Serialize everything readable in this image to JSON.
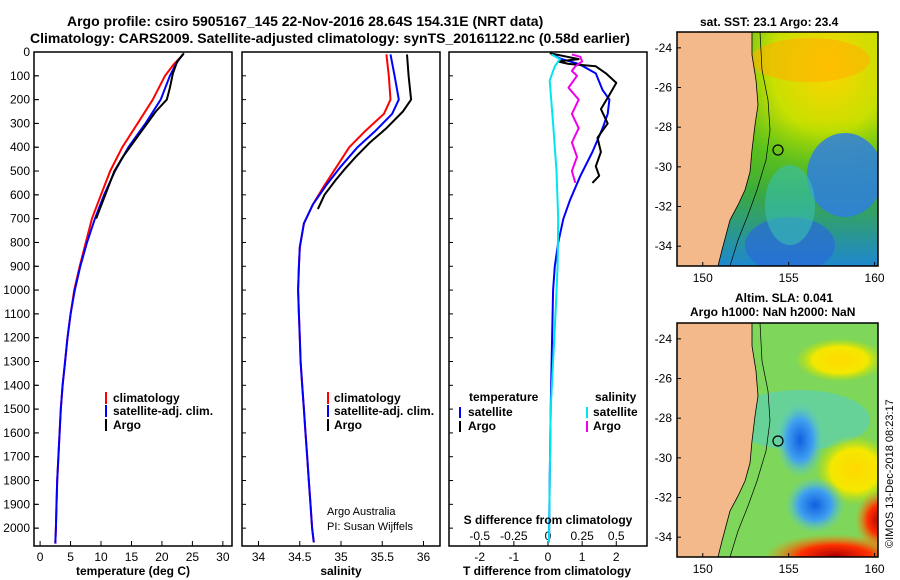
{
  "header": {
    "title_line1": "Argo profile: csiro 5905167_145 22-Nov-2016 28.64S 154.31E (NRT data)",
    "title_line2": "Climatology: CARS2009. Satellite-adjusted climatology: synTS_20161122.nc (0.58d earlier)"
  },
  "colors": {
    "climatology": "#ff0000",
    "satellite": "#0000ff",
    "argo": "#000000",
    "sat_salinity": "#00e5ee",
    "argo_salinity": "#ee00ee",
    "land": "#f4b98a"
  },
  "chart_data": [
    {
      "id": "temperature",
      "type": "line",
      "xlabel": "temperature (deg C)",
      "ylabel": "",
      "xlim": [
        -1,
        31.5
      ],
      "ylim": [
        2075,
        0
      ],
      "xticks": [
        0,
        5,
        10,
        15,
        20,
        25,
        30
      ],
      "yticks": [
        0,
        100,
        200,
        300,
        400,
        500,
        600,
        700,
        800,
        900,
        1000,
        1100,
        1200,
        1300,
        1400,
        1500,
        1600,
        1700,
        1800,
        1900,
        2000
      ],
      "legend": [
        "climatology",
        "satellite-adj. clim.",
        "Argo"
      ],
      "series": [
        {
          "name": "climatology",
          "color": "#ff0000",
          "points": [
            [
              23.5,
              10
            ],
            [
              22,
              50
            ],
            [
              20.5,
              100
            ],
            [
              18.5,
              200
            ],
            [
              16,
              300
            ],
            [
              13.5,
              400
            ],
            [
              11.5,
              500
            ],
            [
              10,
              600
            ],
            [
              8.5,
              700
            ],
            [
              7.5,
              800
            ],
            [
              6.5,
              900
            ],
            [
              5.6,
              1000
            ],
            [
              5,
              1100
            ],
            [
              4.5,
              1200
            ],
            [
              4.1,
              1300
            ],
            [
              3.7,
              1400
            ],
            [
              3.4,
              1500
            ],
            [
              3.2,
              1600
            ],
            [
              3,
              1700
            ],
            [
              2.8,
              1800
            ],
            [
              2.7,
              1900
            ],
            [
              2.6,
              2000
            ],
            [
              2.5,
              2065
            ]
          ]
        },
        {
          "name": "satellite-adj. clim.",
          "color": "#0000ff",
          "points": [
            [
              23.4,
              10
            ],
            [
              22.3,
              50
            ],
            [
              21.3,
              100
            ],
            [
              19.8,
              200
            ],
            [
              17.3,
              300
            ],
            [
              14.5,
              400
            ],
            [
              12.3,
              500
            ],
            [
              10.5,
              600
            ],
            [
              9,
              700
            ],
            [
              7.7,
              800
            ],
            [
              6.6,
              900
            ],
            [
              5.7,
              1000
            ],
            [
              5,
              1100
            ],
            [
              4.5,
              1200
            ],
            [
              4.1,
              1300
            ],
            [
              3.7,
              1400
            ],
            [
              3.4,
              1500
            ],
            [
              3.2,
              1600
            ],
            [
              3,
              1700
            ],
            [
              2.8,
              1800
            ],
            [
              2.7,
              1900
            ],
            [
              2.6,
              2000
            ],
            [
              2.5,
              2065
            ]
          ]
        },
        {
          "name": "Argo",
          "color": "#000000",
          "points": [
            [
              23.6,
              5
            ],
            [
              22.5,
              40
            ],
            [
              21.8,
              90
            ],
            [
              21.3,
              150
            ],
            [
              20.8,
              200
            ],
            [
              19,
              250
            ],
            [
              17,
              320
            ],
            [
              15.3,
              380
            ],
            [
              13.6,
              440
            ],
            [
              12.2,
              500
            ],
            [
              10.7,
              600
            ],
            [
              9.2,
              700
            ]
          ]
        }
      ]
    },
    {
      "id": "salinity",
      "type": "line",
      "xlabel": "salinity",
      "ylabel": "",
      "xlim": [
        33.8,
        36.2
      ],
      "ylim": [
        2075,
        0
      ],
      "xticks": [
        34,
        34.5,
        35,
        35.5,
        36
      ],
      "legend": [
        "climatology",
        "satellite-adj. clim.",
        "Argo"
      ],
      "series": [
        {
          "name": "climatology",
          "color": "#ff0000",
          "points": [
            [
              35.55,
              10
            ],
            [
              35.58,
              100
            ],
            [
              35.6,
              200
            ],
            [
              35.52,
              260
            ],
            [
              35.3,
              330
            ],
            [
              35.1,
              400
            ],
            [
              34.95,
              480
            ],
            [
              34.8,
              560
            ],
            [
              34.66,
              640
            ],
            [
              34.55,
              720
            ],
            [
              34.5,
              820
            ],
            [
              34.49,
              900
            ],
            [
              34.48,
              1000
            ],
            [
              34.49,
              1100
            ],
            [
              34.5,
              1200
            ],
            [
              34.51,
              1300
            ],
            [
              34.53,
              1400
            ],
            [
              34.55,
              1500
            ],
            [
              34.57,
              1600
            ],
            [
              34.59,
              1700
            ],
            [
              34.61,
              1800
            ],
            [
              34.63,
              1900
            ],
            [
              34.65,
              2000
            ],
            [
              34.67,
              2060
            ]
          ]
        },
        {
          "name": "satellite-adj. clim.",
          "color": "#0000ff",
          "points": [
            [
              35.6,
              10
            ],
            [
              35.65,
              100
            ],
            [
              35.7,
              200
            ],
            [
              35.62,
              260
            ],
            [
              35.42,
              330
            ],
            [
              35.2,
              400
            ],
            [
              35.0,
              480
            ],
            [
              34.82,
              560
            ],
            [
              34.66,
              640
            ],
            [
              34.55,
              720
            ],
            [
              34.5,
              820
            ],
            [
              34.49,
              900
            ],
            [
              34.48,
              1000
            ],
            [
              34.49,
              1100
            ],
            [
              34.5,
              1200
            ],
            [
              34.51,
              1300
            ],
            [
              34.53,
              1400
            ],
            [
              34.55,
              1500
            ],
            [
              34.57,
              1600
            ],
            [
              34.59,
              1700
            ],
            [
              34.61,
              1800
            ],
            [
              34.63,
              1900
            ],
            [
              34.65,
              2000
            ],
            [
              34.67,
              2060
            ]
          ]
        },
        {
          "name": "Argo",
          "color": "#000000",
          "points": [
            [
              35.8,
              10
            ],
            [
              35.82,
              100
            ],
            [
              35.85,
              200
            ],
            [
              35.75,
              250
            ],
            [
              35.55,
              320
            ],
            [
              35.35,
              380
            ],
            [
              35.18,
              440
            ],
            [
              35.05,
              490
            ],
            [
              34.93,
              540
            ],
            [
              34.8,
              600
            ],
            [
              34.72,
              660
            ]
          ]
        }
      ]
    },
    {
      "id": "difference",
      "type": "line",
      "xlabel": "T difference from climatology",
      "xlabel_top": "S difference from climatology",
      "xlim": [
        -2.9,
        2.9
      ],
      "ylim": [
        2075,
        0
      ],
      "xticks": [
        -2,
        -1,
        0,
        1,
        2
      ],
      "sticks": [
        "-0.5",
        "-0.25",
        "0",
        "0.25",
        "0.5"
      ],
      "s_tick_positions": [
        -2,
        -1,
        0,
        1,
        2
      ],
      "legend_left_title": "temperature",
      "legend_right_title": "salinity",
      "legend_left": [
        "satellite",
        "Argo"
      ],
      "legend_right": [
        "satellite",
        "Argo"
      ],
      "series": [
        {
          "name": "T satellite",
          "color": "#0000ff",
          "points": [
            [
              0.1,
              10
            ],
            [
              0.4,
              30
            ],
            [
              0.9,
              50
            ],
            [
              1.4,
              90
            ],
            [
              1.6,
              160
            ],
            [
              1.8,
              200
            ],
            [
              1.75,
              260
            ],
            [
              1.6,
              320
            ],
            [
              1.3,
              420
            ],
            [
              0.95,
              520
            ],
            [
              0.65,
              620
            ],
            [
              0.45,
              700
            ],
            [
              0.3,
              800
            ],
            [
              0.2,
              900
            ],
            [
              0.15,
              1000
            ],
            [
              0.12,
              1200
            ],
            [
              0.08,
              1500
            ],
            [
              0.05,
              1800
            ],
            [
              0.03,
              2060
            ]
          ]
        },
        {
          "name": "T Argo",
          "color": "#000000",
          "points": [
            [
              0.05,
              5
            ],
            [
              0.9,
              30
            ],
            [
              0.3,
              40
            ],
            [
              0.6,
              50
            ],
            [
              1.4,
              60
            ],
            [
              1.7,
              90
            ],
            [
              2.0,
              130
            ],
            [
              1.8,
              180
            ],
            [
              1.55,
              240
            ],
            [
              1.75,
              300
            ],
            [
              1.45,
              360
            ],
            [
              1.55,
              420
            ],
            [
              1.4,
              480
            ],
            [
              1.5,
              520
            ],
            [
              1.3,
              550
            ]
          ]
        },
        {
          "name": "S satellite",
          "color": "#00e5ee",
          "points": [
            [
              0.1,
              10
            ],
            [
              0.35,
              30
            ],
            [
              0.2,
              60
            ],
            [
              0.05,
              120
            ],
            [
              0.15,
              300
            ],
            [
              0.25,
              500
            ],
            [
              0.3,
              700
            ],
            [
              0.28,
              900
            ],
            [
              0.22,
              1100
            ],
            [
              0.15,
              1300
            ],
            [
              0.08,
              1500
            ],
            [
              0.05,
              1800
            ],
            [
              0.03,
              2060
            ]
          ]
        },
        {
          "name": "S Argo",
          "color": "#ee00ee",
          "points": [
            [
              0.7,
              10
            ],
            [
              0.95,
              20
            ],
            [
              1.0,
              40
            ],
            [
              0.8,
              60
            ],
            [
              0.7,
              80
            ],
            [
              0.85,
              100
            ],
            [
              0.6,
              150
            ],
            [
              0.9,
              200
            ],
            [
              0.7,
              260
            ],
            [
              0.9,
              320
            ],
            [
              0.7,
              380
            ],
            [
              0.85,
              440
            ],
            [
              0.7,
              500
            ],
            [
              0.8,
              550
            ]
          ]
        }
      ]
    },
    {
      "id": "sst_map",
      "type": "heatmap",
      "title": "sat. SST: 23.1 Argo: 23.4",
      "xlim": [
        148.5,
        160.2
      ],
      "ylim": [
        -35,
        -23.2
      ],
      "xticks": [
        150,
        155,
        160
      ],
      "yticks": [
        -24,
        -26,
        -28,
        -30,
        -32,
        -34
      ],
      "float_position": [
        154.31,
        -28.64
      ]
    },
    {
      "id": "sla_map",
      "type": "heatmap",
      "title_line1": "Altim. SLA: 0.041",
      "title_line2": "Argo h1000: NaN h2000: NaN",
      "xlim": [
        148.5,
        160.2
      ],
      "ylim": [
        -35,
        -23.2
      ],
      "xticks": [
        150,
        155,
        160
      ],
      "yticks": [
        -24,
        -26,
        -28,
        -30,
        -32,
        -34
      ],
      "float_position": [
        154.31,
        -28.64
      ]
    }
  ],
  "credit": {
    "line1": "Argo Australia",
    "line2": "PI: Susan Wijffels"
  },
  "stamp": "©IMOS 13-Dec-2018 08:23:17"
}
